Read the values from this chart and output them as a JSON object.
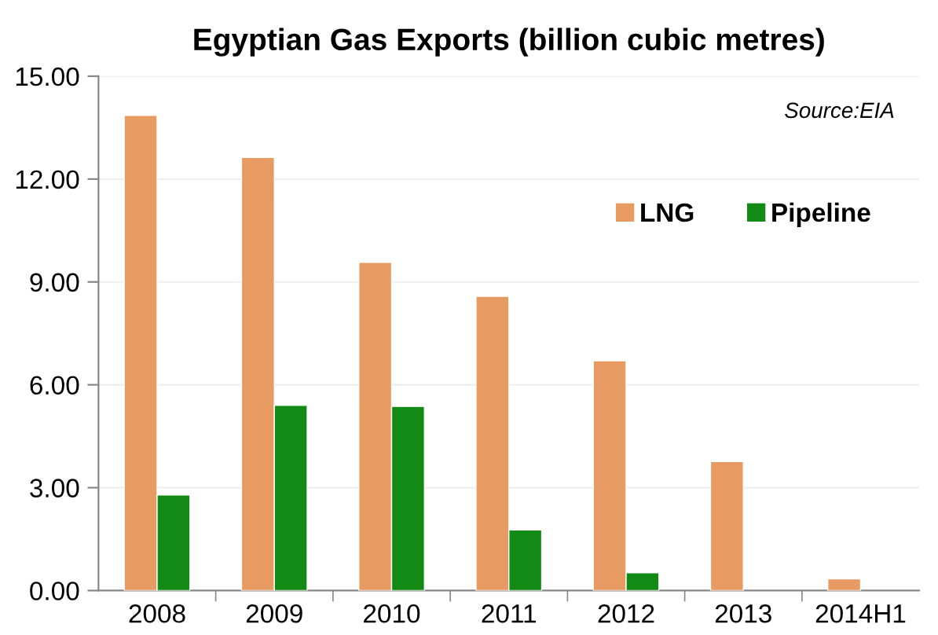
{
  "chart_data": {
    "type": "bar",
    "title": "Egyptian Gas Exports (billion cubic metres)",
    "categories": [
      "2008",
      "2009",
      "2010",
      "2011",
      "2012",
      "2013",
      "2014H1"
    ],
    "series": [
      {
        "name": "LNG",
        "color": "#e89a63",
        "values": [
          13.86,
          12.63,
          9.57,
          8.58,
          6.7,
          3.76,
          0.34
        ]
      },
      {
        "name": "Pipeline",
        "color": "#138a16",
        "values": [
          2.79,
          5.4,
          5.37,
          1.77,
          0.52,
          null,
          null
        ]
      }
    ],
    "ylim": [
      0,
      15
    ],
    "yticks": [
      {
        "value": 0,
        "label": "0.00"
      },
      {
        "value": 3,
        "label": "3.00"
      },
      {
        "value": 6,
        "label": "6.00"
      },
      {
        "value": 9,
        "label": "9.00"
      },
      {
        "value": 12,
        "label": "12.00"
      },
      {
        "value": 15,
        "label": "15.00"
      }
    ],
    "grid": "y",
    "legend": "top right",
    "annotations": [
      "Source:EIA"
    ]
  }
}
